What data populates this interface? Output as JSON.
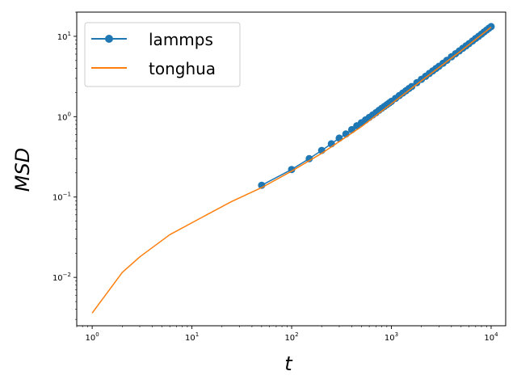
{
  "chart_data": {
    "type": "line",
    "title": "",
    "xlabel": "t",
    "ylabel": "MSD",
    "xscale": "log",
    "yscale": "log",
    "xlim": [
      0.7,
      14000
    ],
    "ylim": [
      0.0025,
      20
    ],
    "grid": false,
    "legend_position": "top-left",
    "x_ticks": [
      {
        "value": 1,
        "base": "10",
        "exp": "0"
      },
      {
        "value": 10,
        "base": "10",
        "exp": "1"
      },
      {
        "value": 100,
        "base": "10",
        "exp": "2"
      },
      {
        "value": 1000,
        "base": "10",
        "exp": "3"
      },
      {
        "value": 10000,
        "base": "10",
        "exp": "4"
      }
    ],
    "y_ticks": [
      {
        "value": 0.01,
        "base": "10",
        "exp": "−2"
      },
      {
        "value": 0.1,
        "base": "10",
        "exp": "−1"
      },
      {
        "value": 1,
        "base": "10",
        "exp": "0"
      },
      {
        "value": 10,
        "base": "10",
        "exp": "1"
      }
    ],
    "series": [
      {
        "name": "lammps",
        "color": "#1f77b4",
        "marker": "circle",
        "x": [
          50,
          100,
          150,
          200,
          250,
          300,
          350,
          400,
          450,
          500,
          550,
          600,
          650,
          700,
          750,
          800,
          850,
          900,
          950,
          1000,
          1100,
          1200,
          1300,
          1400,
          1500,
          1600,
          1800,
          2000,
          2200,
          2400,
          2600,
          2800,
          3000,
          3300,
          3600,
          4000,
          4400,
          4800,
          5200,
          5600,
          6000,
          6500,
          7000,
          7500,
          8000,
          8500,
          9000,
          9500,
          10000
        ],
        "y": [
          0.14,
          0.22,
          0.3,
          0.38,
          0.46,
          0.54,
          0.61,
          0.69,
          0.77,
          0.84,
          0.91,
          0.98,
          1.05,
          1.12,
          1.2,
          1.27,
          1.34,
          1.41,
          1.48,
          1.55,
          1.69,
          1.83,
          1.97,
          2.1,
          2.24,
          2.37,
          2.65,
          2.92,
          3.18,
          3.45,
          3.71,
          3.98,
          4.24,
          4.63,
          5.03,
          5.55,
          6.06,
          6.58,
          7.1,
          7.6,
          8.1,
          8.75,
          9.4,
          10.0,
          10.65,
          11.3,
          11.95,
          12.6,
          13.2
        ]
      },
      {
        "name": "tonghua",
        "color": "#ff7f0e",
        "marker": "none",
        "x": [
          1,
          2,
          3,
          6,
          13,
          25,
          50,
          100,
          200,
          500,
          1000,
          2000,
          5000,
          10000
        ],
        "y": [
          0.0036,
          0.0115,
          0.018,
          0.034,
          0.057,
          0.088,
          0.131,
          0.21,
          0.35,
          0.75,
          1.45,
          2.8,
          6.6,
          13.0
        ]
      }
    ]
  }
}
